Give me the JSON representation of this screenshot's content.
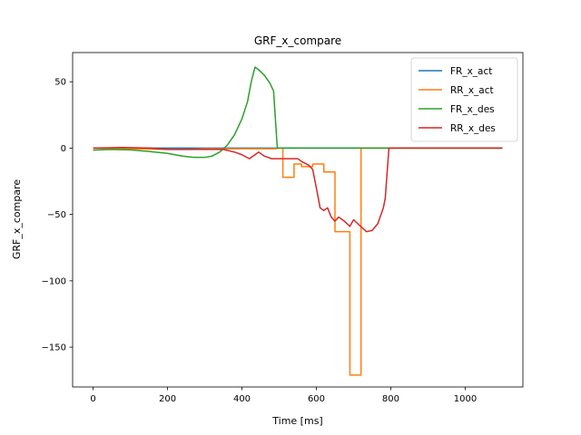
{
  "chart_data": {
    "type": "line",
    "title": "GRF_x_compare",
    "xlabel": "Time [ms]",
    "ylabel": "GRF_x_compare",
    "xlim": [
      -55,
      1155
    ],
    "ylim": [
      -180,
      72
    ],
    "xticks": [
      0,
      200,
      400,
      600,
      800,
      1000
    ],
    "xtick_labels": [
      "0",
      "200",
      "400",
      "600",
      "800",
      "1000"
    ],
    "yticks": [
      50,
      0,
      -50,
      -100,
      -150
    ],
    "ytick_labels": [
      "50",
      "0",
      "−50",
      "−100",
      "−150"
    ],
    "grid": false,
    "legend_position": "top-right",
    "series": [
      {
        "name": "FR_x_act",
        "color": "#1f77b4",
        "points": [
          [
            0,
            0
          ],
          [
            1100,
            0
          ]
        ]
      },
      {
        "name": "RR_x_act",
        "color": "#ff7f0e",
        "points": [
          [
            0,
            0
          ],
          [
            200,
            -1
          ],
          [
            260,
            -1
          ],
          [
            300,
            -0.5
          ],
          [
            490,
            -0.5
          ],
          [
            500,
            0
          ],
          [
            510,
            0
          ],
          [
            510,
            -22
          ],
          [
            540,
            -22
          ],
          [
            540,
            -12
          ],
          [
            560,
            -12
          ],
          [
            560,
            -14
          ],
          [
            590,
            -14
          ],
          [
            590,
            -12
          ],
          [
            620,
            -12
          ],
          [
            620,
            -18
          ],
          [
            650,
            -18
          ],
          [
            650,
            -63
          ],
          [
            690,
            -63
          ],
          [
            690,
            -171
          ],
          [
            720,
            -171
          ],
          [
            720,
            0
          ],
          [
            1100,
            0
          ]
        ]
      },
      {
        "name": "FR_x_des",
        "color": "#2ca02c",
        "points": [
          [
            0,
            -1.5
          ],
          [
            50,
            -1
          ],
          [
            100,
            -1.3
          ],
          [
            150,
            -2.5
          ],
          [
            200,
            -4
          ],
          [
            240,
            -6
          ],
          [
            270,
            -7
          ],
          [
            300,
            -7
          ],
          [
            320,
            -6
          ],
          [
            340,
            -3
          ],
          [
            360,
            2
          ],
          [
            380,
            10
          ],
          [
            400,
            22
          ],
          [
            415,
            35
          ],
          [
            425,
            50
          ],
          [
            435,
            61
          ],
          [
            445,
            59
          ],
          [
            460,
            55
          ],
          [
            475,
            49
          ],
          [
            485,
            43
          ],
          [
            495,
            0
          ],
          [
            1100,
            0
          ]
        ]
      },
      {
        "name": "RR_x_des",
        "color": "#d62728",
        "points": [
          [
            0,
            0
          ],
          [
            80,
            0.5
          ],
          [
            150,
            0
          ],
          [
            200,
            -1
          ],
          [
            250,
            -1
          ],
          [
            300,
            -1
          ],
          [
            350,
            -1
          ],
          [
            380,
            -3
          ],
          [
            400,
            -5
          ],
          [
            420,
            -8
          ],
          [
            435,
            -5
          ],
          [
            445,
            -3
          ],
          [
            460,
            -6
          ],
          [
            480,
            -8
          ],
          [
            500,
            -8
          ],
          [
            520,
            -8
          ],
          [
            550,
            -8
          ],
          [
            560,
            -10
          ],
          [
            580,
            -13
          ],
          [
            590,
            -16
          ],
          [
            600,
            -30
          ],
          [
            610,
            -45
          ],
          [
            620,
            -47
          ],
          [
            630,
            -45
          ],
          [
            640,
            -52
          ],
          [
            650,
            -55
          ],
          [
            660,
            -52
          ],
          [
            675,
            -55
          ],
          [
            690,
            -59
          ],
          [
            700,
            -54
          ],
          [
            715,
            -58
          ],
          [
            735,
            -63
          ],
          [
            750,
            -62
          ],
          [
            765,
            -57
          ],
          [
            780,
            -45
          ],
          [
            785,
            -38
          ],
          [
            795,
            0
          ],
          [
            1100,
            0
          ]
        ]
      }
    ]
  }
}
